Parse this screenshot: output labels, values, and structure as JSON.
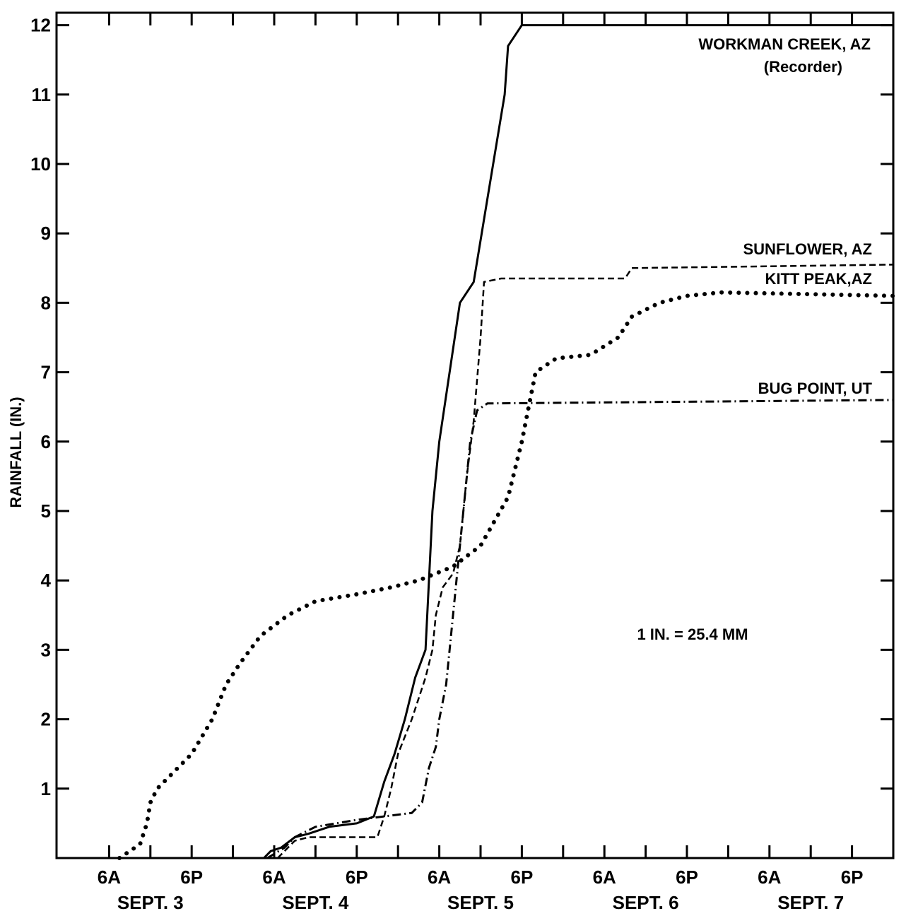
{
  "chart_data": {
    "type": "line",
    "ylabel": "RAINFALL (IN.)",
    "xlabel": "",
    "ylim": [
      0,
      12.2
    ],
    "yticks": [
      1,
      2,
      3,
      4,
      5,
      6,
      7,
      8,
      9,
      10,
      11,
      12
    ],
    "xlim": [
      0,
      120
    ],
    "x_unit": "hours from midnight, Sept. 3",
    "x_tick_labels": [
      {
        "x": 6,
        "label": "6A"
      },
      {
        "x": 18,
        "label": "6P"
      },
      {
        "x": 30,
        "label": "6A"
      },
      {
        "x": 42,
        "label": "6P"
      },
      {
        "x": 54,
        "label": "6A"
      },
      {
        "x": 66,
        "label": "6P"
      },
      {
        "x": 78,
        "label": "6A"
      },
      {
        "x": 90,
        "label": "6P"
      },
      {
        "x": 102,
        "label": "6A"
      },
      {
        "x": 114,
        "label": "6P"
      }
    ],
    "day_labels": [
      {
        "x": 12,
        "label": "SEPT. 3"
      },
      {
        "x": 36,
        "label": "SEPT. 4"
      },
      {
        "x": 60,
        "label": "SEPT. 5"
      },
      {
        "x": 84,
        "label": "SEPT. 6"
      },
      {
        "x": 108,
        "label": "SEPT. 7"
      }
    ],
    "annotation": "1 IN. = 25.4 MM",
    "grid": false,
    "series": [
      {
        "name": "WORKMAN CREEK, AZ",
        "name_line2": "(Recorder)",
        "style": "solid",
        "points": [
          [
            28.5,
            0
          ],
          [
            29.5,
            0.1
          ],
          [
            31,
            0.15
          ],
          [
            33,
            0.3
          ],
          [
            35,
            0.35
          ],
          [
            38,
            0.45
          ],
          [
            42,
            0.5
          ],
          [
            44.5,
            0.6
          ],
          [
            46,
            1.1
          ],
          [
            47.5,
            1.5
          ],
          [
            49,
            2
          ],
          [
            50.5,
            2.6
          ],
          [
            52,
            3
          ],
          [
            52.5,
            4
          ],
          [
            53,
            5
          ],
          [
            54,
            6
          ],
          [
            55.5,
            7
          ],
          [
            57,
            8
          ],
          [
            59,
            8.3
          ],
          [
            61,
            9.5
          ],
          [
            63.5,
            11
          ],
          [
            64,
            11.7
          ],
          [
            66,
            12
          ],
          [
            120,
            12
          ]
        ]
      },
      {
        "name": "SUNFLOWER, AZ",
        "style": "dashed",
        "points": [
          [
            30.5,
            0
          ],
          [
            33,
            0.25
          ],
          [
            35,
            0.3
          ],
          [
            45,
            0.3
          ],
          [
            46,
            0.6
          ],
          [
            47,
            1
          ],
          [
            48,
            1.5
          ],
          [
            50,
            2
          ],
          [
            52,
            2.6
          ],
          [
            53,
            3
          ],
          [
            53.5,
            3.5
          ],
          [
            54.5,
            3.9
          ],
          [
            56,
            4.1
          ],
          [
            57,
            4.5
          ],
          [
            58,
            5.5
          ],
          [
            59,
            6.3
          ],
          [
            60,
            7.5
          ],
          [
            60.5,
            8.3
          ],
          [
            63,
            8.35
          ],
          [
            81,
            8.35
          ],
          [
            82,
            8.5
          ],
          [
            120,
            8.55
          ]
        ]
      },
      {
        "name": "KITT PEAK,AZ",
        "style": "dotted",
        "points": [
          [
            7.5,
            0
          ],
          [
            10.5,
            0.2
          ],
          [
            11.5,
            0.5
          ],
          [
            12,
            0.8
          ],
          [
            13,
            1
          ],
          [
            15,
            1.2
          ],
          [
            18,
            1.5
          ],
          [
            21,
            2
          ],
          [
            23,
            2.5
          ],
          [
            25,
            2.8
          ],
          [
            28,
            3.2
          ],
          [
            32,
            3.5
          ],
          [
            36,
            3.7
          ],
          [
            42,
            3.8
          ],
          [
            47,
            3.9
          ],
          [
            51,
            4
          ],
          [
            56,
            4.2
          ],
          [
            60,
            4.5
          ],
          [
            64,
            5.2
          ],
          [
            66,
            6
          ],
          [
            67,
            6.5
          ],
          [
            68,
            7
          ],
          [
            71,
            7.2
          ],
          [
            76,
            7.25
          ],
          [
            80,
            7.5
          ],
          [
            82,
            7.8
          ],
          [
            86,
            8
          ],
          [
            90,
            8.1
          ],
          [
            95,
            8.15
          ],
          [
            120,
            8.1
          ]
        ]
      },
      {
        "name": "BUG POINT, UT",
        "style": "dashdot",
        "points": [
          [
            29,
            0
          ],
          [
            31.5,
            0.15
          ],
          [
            33,
            0.3
          ],
          [
            36,
            0.45
          ],
          [
            42,
            0.55
          ],
          [
            46,
            0.6
          ],
          [
            50,
            0.65
          ],
          [
            51.5,
            0.8
          ],
          [
            52.5,
            1.3
          ],
          [
            53.5,
            1.6
          ],
          [
            54,
            2
          ],
          [
            55,
            2.5
          ],
          [
            55.5,
            3
          ],
          [
            56.5,
            4
          ],
          [
            57.5,
            5
          ],
          [
            58.5,
            6
          ],
          [
            59.5,
            6.45
          ],
          [
            61,
            6.55
          ],
          [
            120,
            6.6
          ]
        ]
      }
    ]
  }
}
